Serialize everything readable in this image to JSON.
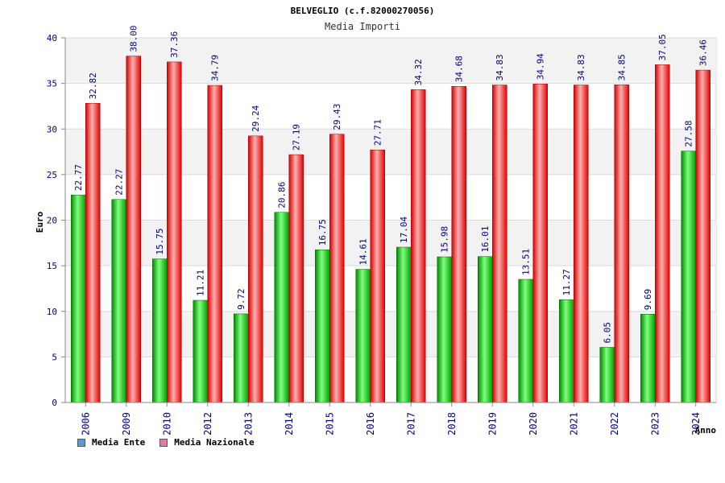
{
  "chart_data": {
    "type": "bar",
    "title": "BELVEGLIO (c.f.82000270056)",
    "subtitle": "Media Importi",
    "xlabel": "Anno",
    "ylabel": "Euro",
    "ylim": [
      0,
      40
    ],
    "yticks": [
      0,
      5,
      10,
      15,
      20,
      25,
      30,
      35,
      40
    ],
    "grid": true,
    "legend_position": "bottom-left",
    "categories": [
      "2006",
      "2009",
      "2010",
      "2012",
      "2013",
      "2014",
      "2015",
      "2016",
      "2017",
      "2018",
      "2019",
      "2020",
      "2021",
      "2022",
      "2023",
      "2024"
    ],
    "series": [
      {
        "name": "Media Ente",
        "color": "#00b000",
        "legend_color": "#5b9bd5",
        "values": [
          22.77,
          22.27,
          15.75,
          11.21,
          9.72,
          20.86,
          16.75,
          14.61,
          17.04,
          15.98,
          16.01,
          13.51,
          11.27,
          6.05,
          9.69,
          27.58
        ],
        "labels": [
          "22.77",
          "22.27",
          "15.75",
          "11.21",
          "9.72",
          "20.86",
          "16.75",
          "14.61",
          "17.04",
          "15.98",
          "16.01",
          "13.51",
          "11.27",
          "6.05",
          "9.69",
          "27.58"
        ]
      },
      {
        "name": "Media Nazionale",
        "color": "#e00000",
        "legend_color": "#e37ba8",
        "values": [
          32.82,
          38.0,
          37.36,
          34.79,
          29.24,
          27.19,
          29.43,
          27.71,
          34.32,
          34.68,
          34.83,
          34.94,
          34.83,
          34.85,
          37.05,
          36.46
        ],
        "labels": [
          "32.82",
          "38.00",
          "37.36",
          "34.79",
          "29.24",
          "27.19",
          "29.43",
          "27.71",
          "34.32",
          "34.68",
          "34.83",
          "34.94",
          "34.83",
          "34.85",
          "37.05",
          "36.46"
        ]
      }
    ]
  }
}
